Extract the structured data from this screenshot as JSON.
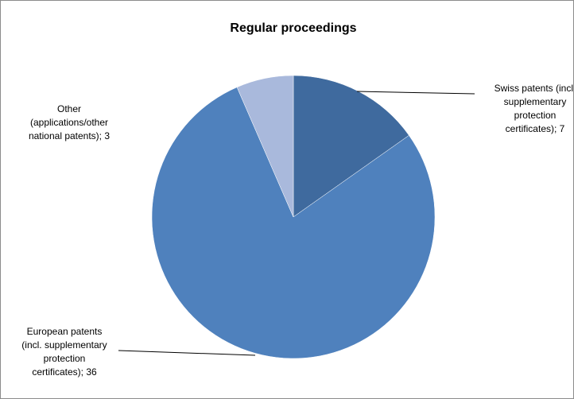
{
  "chart_data": {
    "type": "pie",
    "title": "Regular proceedings",
    "legend": "none",
    "start_angle_deg": 0,
    "direction": "clockwise",
    "slices": [
      {
        "name": "Swiss patents (incl. supplementary protection certificates)",
        "value": 7,
        "color": "#3f6a9e",
        "label_lines": [
          "Swiss patents (incl.",
          "supplementary",
          "protection",
          "certificates); 7"
        ]
      },
      {
        "name": "European patents (incl. supplementary protection certificates)",
        "value": 36,
        "color": "#4f81bd",
        "label_lines": [
          "European patents",
          "(incl. supplementary",
          "protection",
          "certificates); 36"
        ]
      },
      {
        "name": "Other (applications/other national patents)",
        "value": 3,
        "color": "#a9b9dc",
        "label_lines": [
          "Other",
          "(applications/other",
          "national patents); 3"
        ]
      }
    ]
  }
}
